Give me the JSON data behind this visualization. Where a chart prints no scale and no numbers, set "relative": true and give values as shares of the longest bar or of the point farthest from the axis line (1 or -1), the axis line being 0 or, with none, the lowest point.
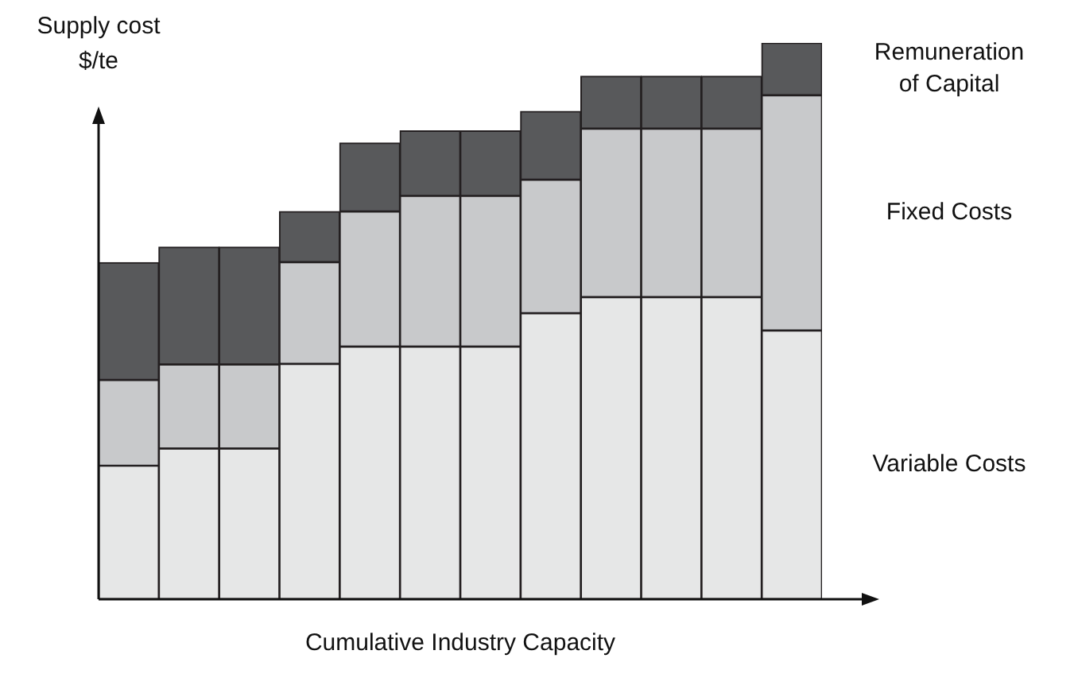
{
  "chart_data": {
    "type": "bar",
    "stacked": true,
    "relative": true,
    "legend": "right",
    "xlabel": "Cumulative Industry Capacity",
    "ylabel": "Supply cost $/te",
    "categories": [
      null,
      null,
      null,
      null,
      null,
      null,
      null,
      null,
      null,
      null,
      null,
      null
    ],
    "series": [
      {
        "name": "Variable Costs",
        "color": "#e6e7e7",
        "values": [
          0.24,
          0.271,
          0.271,
          0.423,
          0.454,
          0.454,
          0.454,
          0.514,
          0.543,
          0.543,
          0.543,
          0.483
        ]
      },
      {
        "name": "Fixed Costs",
        "color": "#c8c9cb",
        "values": [
          0.154,
          0.151,
          0.151,
          0.183,
          0.243,
          0.271,
          0.271,
          0.24,
          0.303,
          0.303,
          0.303,
          0.423
        ]
      },
      {
        "name": "Remuneration of Capital",
        "color": "#58595b",
        "values": [
          0.211,
          0.211,
          0.211,
          0.091,
          0.123,
          0.117,
          0.117,
          0.123,
          0.094,
          0.094,
          0.094,
          0.094
        ]
      }
    ]
  }
}
